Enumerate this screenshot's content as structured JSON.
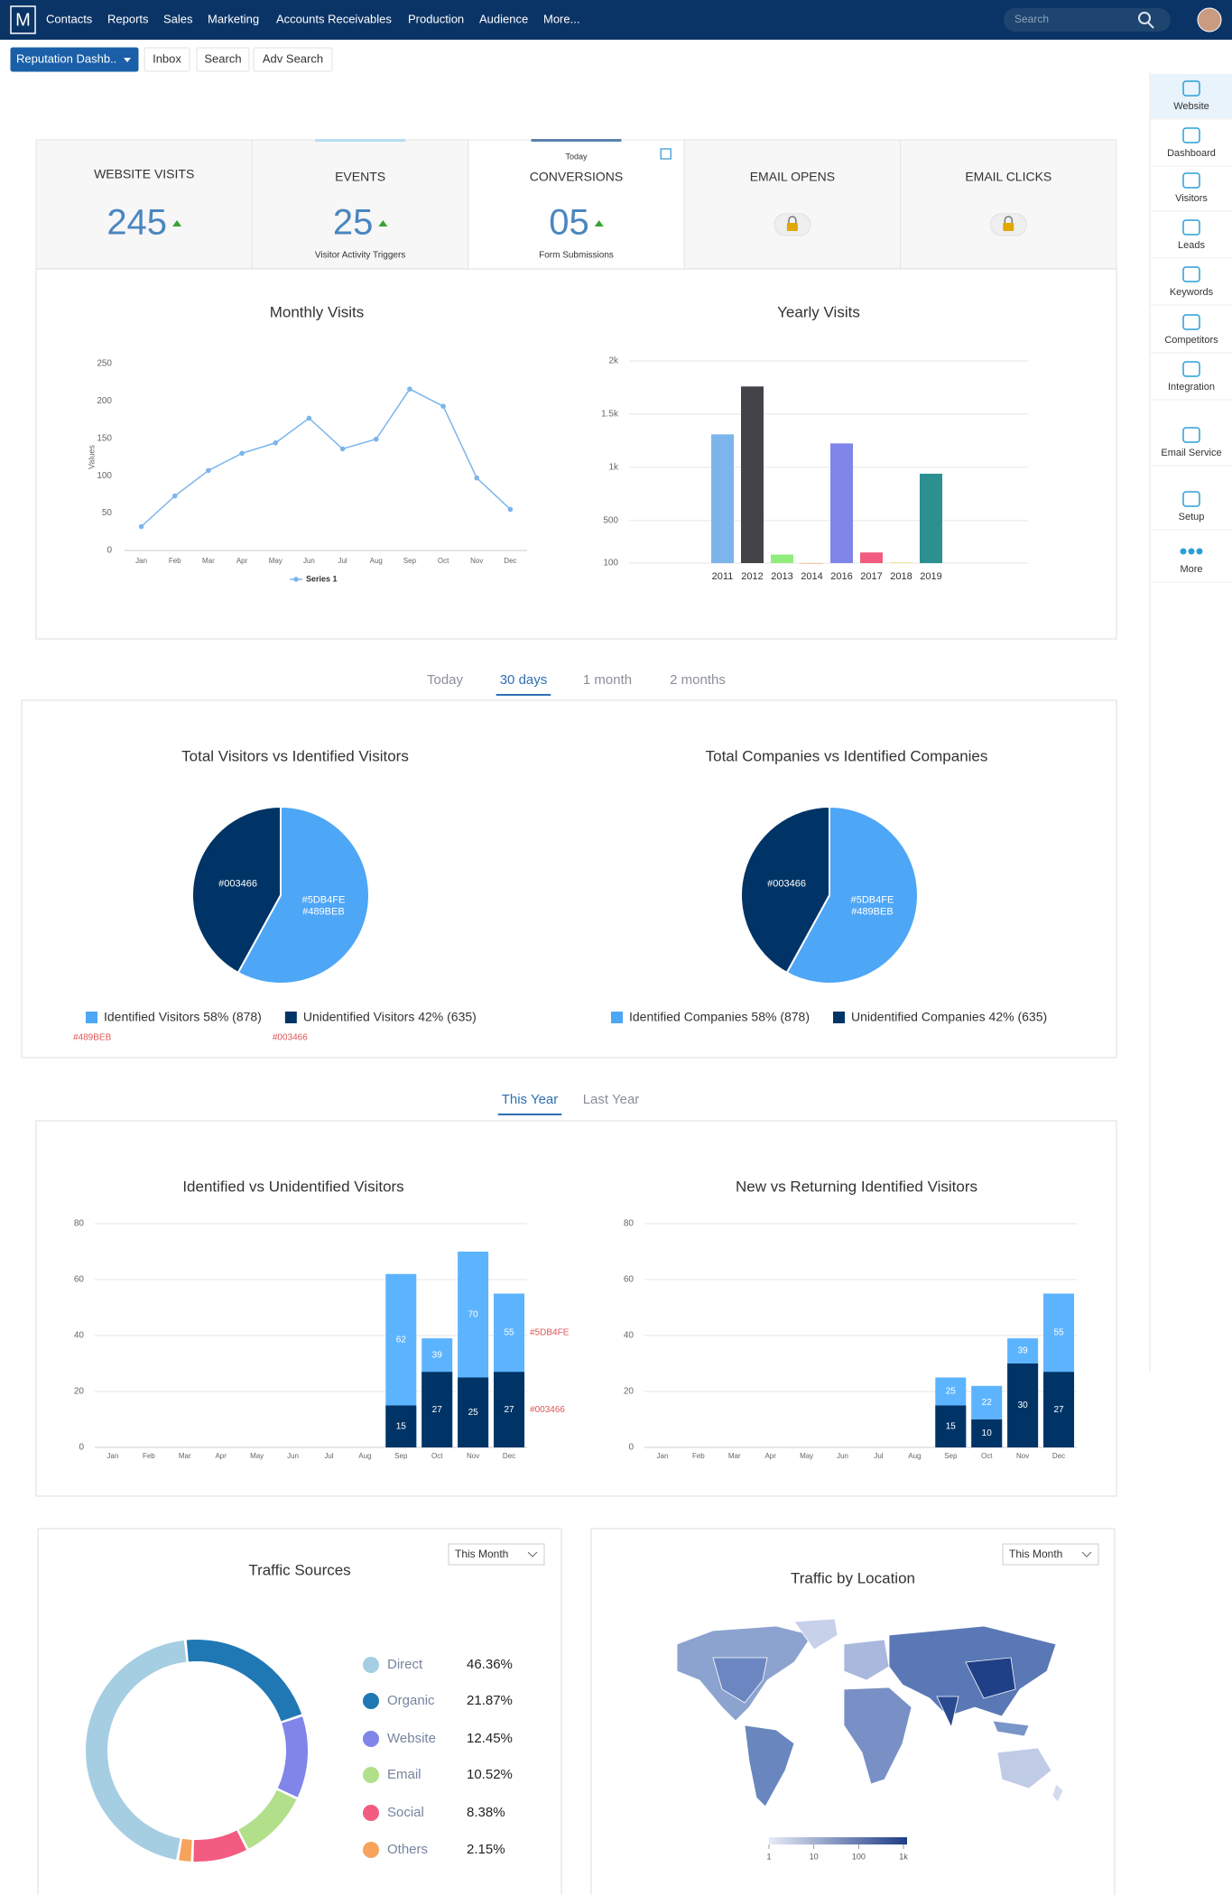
{
  "nav": {
    "logo": "M",
    "menu": [
      "Contacts",
      "Reports",
      "Sales",
      "Marketing",
      "Accounts Receivables",
      "Production",
      "Audience",
      "More..."
    ],
    "search_placeholder": "Search"
  },
  "toolbar": [
    "Reputation Dashb..",
    "Inbox",
    "Search",
    "Adv Search"
  ],
  "sidebar": {
    "items": [
      "Website",
      "Dashboard",
      "Visitors",
      "Leads",
      "Keywords",
      "Competitors",
      "Integration",
      "Email Service",
      "Setup",
      "More"
    ],
    "active": 0
  },
  "kpis": [
    {
      "title": "WEBSITE VISITS",
      "value": "245"
    },
    {
      "title": "EVENTS",
      "value": "25",
      "caption": "Visitor Activity Triggers"
    },
    {
      "title": "CONVERSIONS",
      "top": "Today",
      "value": "05",
      "caption": "Form Submissions"
    },
    {
      "title": "EMAIL OPENS"
    },
    {
      "title": "EMAIL CLICKS"
    }
  ],
  "tabs_period": {
    "items": [
      "Today",
      "30 days",
      "1 month",
      "2 months"
    ],
    "active": 1
  },
  "tabs_year": {
    "items": [
      "This Year",
      "Last Year"
    ],
    "active": 0
  },
  "chart_data": [
    {
      "type": "line",
      "title": "Monthly Visits",
      "y_label": "Values",
      "categories": [
        "Jan",
        "Feb",
        "Mar",
        "Apr",
        "May",
        "Jun",
        "Jul",
        "Aug",
        "Sep",
        "Oct",
        "Nov",
        "Dec"
      ],
      "series": [
        {
          "name": "Series 1",
          "color": "#7cb5ec",
          "values": [
            32,
            73,
            107,
            130,
            144,
            177,
            136,
            149,
            216,
            193,
            97,
            55
          ]
        }
      ],
      "ylim": [
        0,
        250
      ],
      "yticks": [
        0,
        50,
        100,
        150,
        200,
        250
      ],
      "grid": false
    },
    {
      "type": "bar",
      "title": "Yearly Visits",
      "categories": [
        "2011",
        "2012",
        "2013",
        "2014",
        "2016",
        "2017",
        "2018",
        "2019"
      ],
      "values": [
        1310,
        1760,
        180,
        95,
        1225,
        200,
        105,
        940
      ],
      "colors": [
        "#7cb5ec",
        "#434348",
        "#90ed7d",
        "#f7a35c",
        "#8085e9",
        "#f15c80",
        "#e4d354",
        "#2b908f"
      ],
      "ylim": [
        100,
        2000
      ],
      "yticks": [
        100,
        500,
        {
          "value": 1000,
          "label": "1k"
        },
        {
          "value": 1500,
          "label": "1.5k"
        },
        {
          "value": 2000,
          "label": "2k"
        }
      ],
      "grid": true
    },
    {
      "type": "pie",
      "title": "Total Visitors vs Identified Visitors",
      "labels": [
        "Identified Visitors 58% (878)",
        "Unidentified Visitors 42% (635)"
      ],
      "values": [
        58,
        42
      ],
      "colors": [
        "#4ea6f6",
        "#003466"
      ],
      "slice_labels": [
        [
          "#5DB4FE",
          "#489BEB"
        ],
        [
          "#003466"
        ]
      ],
      "annotations": [
        "#489BEB",
        "#003466"
      ]
    },
    {
      "type": "pie",
      "title": "Total Companies vs Identified Companies",
      "labels": [
        "Identified Companies 58% (878)",
        "Unidentified Companies 42% (635)"
      ],
      "values": [
        58,
        42
      ],
      "colors": [
        "#4ea6f6",
        "#003466"
      ],
      "slice_labels": [
        [
          "#5DB4FE",
          "#489BEB"
        ],
        [
          "#003466"
        ]
      ]
    },
    {
      "type": "bar",
      "mode": "overlap",
      "title": "Identified vs Unidentified Visitors",
      "categories": [
        "Jan",
        "Feb",
        "Mar",
        "Apr",
        "May",
        "Jun",
        "Jul",
        "Aug",
        "Sep",
        "Oct",
        "Nov",
        "Dec"
      ],
      "series": [
        {
          "color": "#5DB4FE",
          "values": [
            null,
            null,
            null,
            null,
            null,
            null,
            null,
            null,
            62,
            39,
            70,
            55
          ]
        },
        {
          "color": "#003466",
          "values": [
            null,
            null,
            null,
            null,
            null,
            null,
            null,
            null,
            15,
            27,
            25,
            27
          ]
        }
      ],
      "ylim": [
        0,
        80
      ],
      "yticks": [
        0,
        20,
        40,
        60,
        80
      ],
      "grid": true,
      "annotations": [
        "#5DB4FE",
        "#003466"
      ]
    },
    {
      "type": "bar",
      "mode": "overlap",
      "title": "New vs Returning Identified Visitors",
      "categories": [
        "Jan",
        "Feb",
        "Mar",
        "Apr",
        "May",
        "Jun",
        "Jul",
        "Aug",
        "Sep",
        "Oct",
        "Nov",
        "Dec"
      ],
      "series": [
        {
          "color": "#5DB4FE",
          "values": [
            null,
            null,
            null,
            null,
            null,
            null,
            null,
            null,
            25,
            22,
            39,
            55
          ]
        },
        {
          "color": "#003466",
          "values": [
            null,
            null,
            null,
            null,
            null,
            null,
            null,
            null,
            15,
            10,
            30,
            27
          ]
        }
      ],
      "ylim": [
        0,
        80
      ],
      "yticks": [
        0,
        20,
        40,
        60,
        80
      ],
      "grid": true
    },
    {
      "type": "donut",
      "title": "Traffic Sources",
      "dropdown": "This Month",
      "categories": [
        "Direct",
        "Organic",
        "Website",
        "Email",
        "Social",
        "Others"
      ],
      "values": [
        46.36,
        21.87,
        12.45,
        10.52,
        8.38,
        2.15
      ],
      "value_labels": [
        "46.36%",
        "21.87%",
        "12.45%",
        "10.52%",
        "8.38%",
        "2.15%"
      ],
      "colors": [
        "#a6cee3",
        "#1f78b4",
        "#8085e9",
        "#b2df8a",
        "#f15c80",
        "#f7a35c"
      ]
    },
    {
      "type": "map",
      "title": "Traffic by Location",
      "dropdown": "This Month",
      "log_scale": true,
      "xlim": [
        1,
        1000
      ],
      "xticks": [
        1,
        10,
        100,
        {
          "value": 1000,
          "label": "1k"
        }
      ]
    }
  ]
}
